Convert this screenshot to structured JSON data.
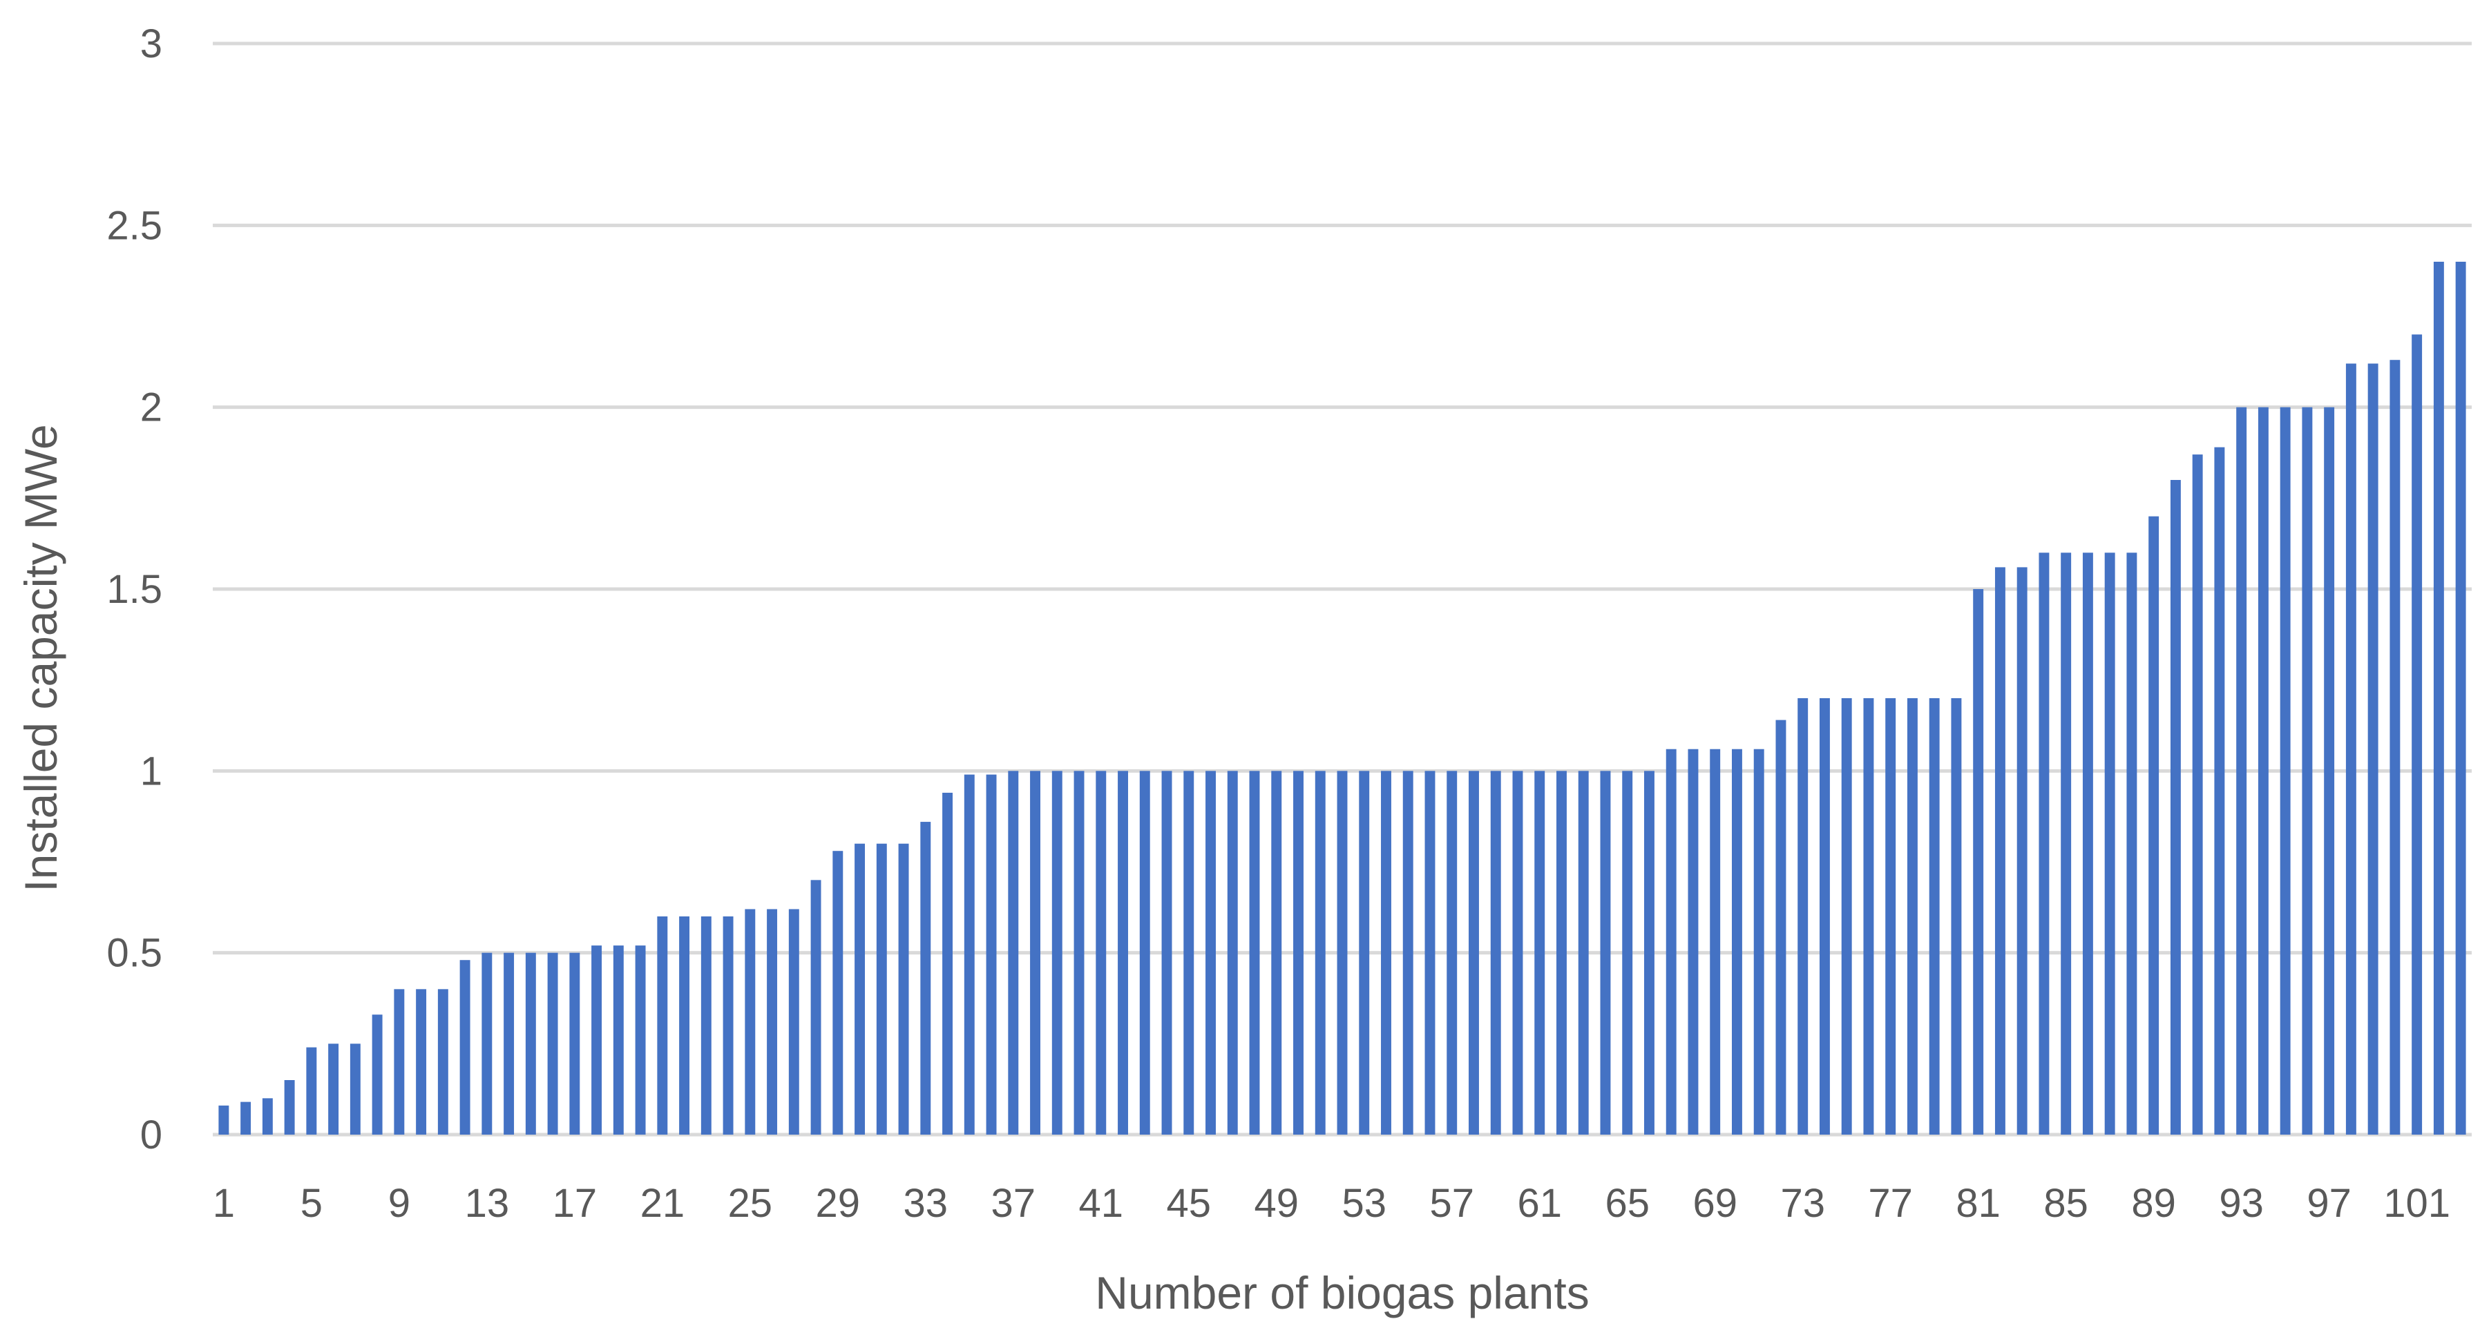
{
  "chart_data": {
    "type": "bar",
    "xlabel": "Number of biogas plants",
    "ylabel": "Installed capacity MWe",
    "ylim": [
      0,
      3
    ],
    "y_ticks": [
      "0",
      "0.5",
      "1",
      "1.5",
      "2",
      "2.5",
      "3"
    ],
    "x_tick_labels": [
      "1",
      "5",
      "9",
      "13",
      "17",
      "21",
      "25",
      "29",
      "33",
      "37",
      "41",
      "45",
      "49",
      "53",
      "57",
      "61",
      "65",
      "69",
      "73",
      "77",
      "81",
      "85",
      "89",
      "93",
      "97",
      "101"
    ],
    "grid": true,
    "legend": "none",
    "bar_color": "#4472c4",
    "categories": [
      1,
      2,
      3,
      4,
      5,
      6,
      7,
      8,
      9,
      10,
      11,
      12,
      13,
      14,
      15,
      16,
      17,
      18,
      19,
      20,
      21,
      22,
      23,
      24,
      25,
      26,
      27,
      28,
      29,
      30,
      31,
      32,
      33,
      34,
      35,
      36,
      37,
      38,
      39,
      40,
      41,
      42,
      43,
      44,
      45,
      46,
      47,
      48,
      49,
      50,
      51,
      52,
      53,
      54,
      55,
      56,
      57,
      58,
      59,
      60,
      61,
      62,
      63,
      64,
      65,
      66,
      67,
      68,
      69,
      70,
      71,
      72,
      73,
      74,
      75,
      76,
      77,
      78,
      79,
      80,
      81,
      82,
      83,
      84,
      85,
      86,
      87,
      88,
      89,
      90,
      91,
      92,
      93,
      94,
      95,
      96,
      97,
      98,
      99,
      100,
      101,
      102,
      103
    ],
    "values": [
      0.08,
      0.09,
      0.1,
      0.15,
      0.24,
      0.25,
      0.25,
      0.33,
      0.4,
      0.4,
      0.4,
      0.48,
      0.5,
      0.5,
      0.5,
      0.5,
      0.5,
      0.52,
      0.52,
      0.52,
      0.6,
      0.6,
      0.6,
      0.6,
      0.62,
      0.62,
      0.62,
      0.7,
      0.78,
      0.8,
      0.8,
      0.8,
      0.86,
      0.94,
      0.99,
      0.99,
      1,
      1,
      1,
      1,
      1,
      1,
      1,
      1,
      1,
      1,
      1,
      1,
      1,
      1,
      1,
      1,
      1,
      1,
      1,
      1,
      1,
      1,
      1,
      1,
      1,
      1,
      1,
      1,
      1,
      1,
      1.06,
      1.06,
      1.06,
      1.06,
      1.06,
      1.14,
      1.2,
      1.2,
      1.2,
      1.2,
      1.2,
      1.2,
      1.2,
      1.2,
      1.5,
      1.56,
      1.56,
      1.6,
      1.6,
      1.6,
      1.6,
      1.6,
      1.7,
      1.8,
      1.87,
      1.89,
      2,
      2,
      2,
      2,
      2,
      2.12,
      2.12,
      2.13,
      2.2,
      2.4,
      2.4
    ]
  }
}
